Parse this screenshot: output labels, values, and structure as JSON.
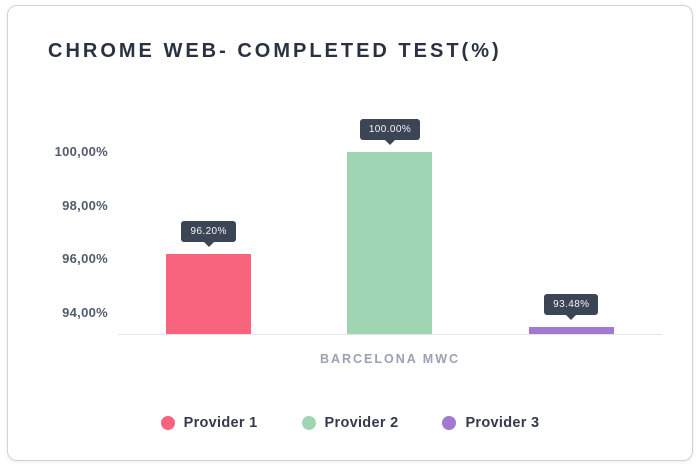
{
  "chart_data": {
    "type": "bar",
    "title": "CHROME WEB- COMPLETED TEST(%)",
    "categories": [
      "BARCELONA MWC"
    ],
    "series": [
      {
        "name": "Provider 1",
        "values": [
          96.2
        ],
        "data_label": "96.20%",
        "color": "#F8637D"
      },
      {
        "name": "Provider 2",
        "values": [
          100.0
        ],
        "data_label": "100.00%",
        "color": "#9FD5B2"
      },
      {
        "name": "Provider 3",
        "values": [
          93.48
        ],
        "data_label": "93.48%",
        "color": "#A378D1"
      }
    ],
    "yticks": [
      {
        "value": 100,
        "label": "100,00%"
      },
      {
        "value": 98,
        "label": "98,00%"
      },
      {
        "value": 96,
        "label": "96,00%"
      },
      {
        "value": 94,
        "label": "94,00%"
      }
    ],
    "ylim": [
      93.2,
      102.0
    ],
    "xlabel": "",
    "ylabel": "",
    "grid": false,
    "legend_position": "bottom",
    "tooltip_bg": "#3C4555",
    "axis_line_color": "#E4E6EA"
  }
}
